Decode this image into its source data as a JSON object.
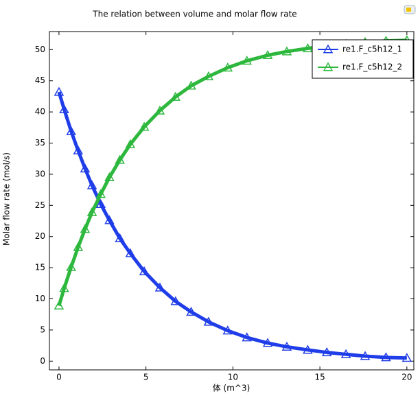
{
  "chart_data": {
    "type": "line",
    "title": "The relation between volume and molar flow rate",
    "x_label": "体 (m^3)",
    "y_label": "Molar flow rate (mol/s)",
    "x": [
      0,
      0.3,
      0.7,
      1.1,
      1.5,
      1.9,
      2.4,
      2.9,
      3.5,
      4.1,
      4.9,
      5.8,
      6.7,
      7.6,
      8.6,
      9.7,
      10.8,
      12,
      13.1,
      14.3,
      15.4,
      16.5,
      17.6,
      18.8,
      20
    ],
    "series": [
      {
        "name": "re1.F_c5h12_1",
        "color": "#1f3de8",
        "values": [
          43.2,
          40.4,
          36.9,
          33.8,
          30.9,
          28.2,
          25.2,
          22.6,
          19.7,
          17.3,
          14.4,
          11.8,
          9.6,
          7.9,
          6.3,
          4.9,
          3.8,
          2.9,
          2.3,
          1.8,
          1.4,
          1.1,
          0.8,
          0.6,
          0.5
        ]
      },
      {
        "name": "re1.F_c5h12_2",
        "color": "#2db83d",
        "values": [
          8.9,
          11.7,
          15.1,
          18.3,
          21.2,
          23.9,
          26.8,
          29.5,
          32.3,
          34.8,
          37.6,
          40.2,
          42.4,
          44.2,
          45.7,
          47.1,
          48.2,
          49.1,
          49.7,
          50.2,
          50.6,
          50.9,
          51.2,
          51.4,
          51.5
        ]
      }
    ],
    "xlim": [
      -0.55,
      20.4
    ],
    "ylim": [
      -1.4,
      52.9
    ],
    "xticks": [
      0,
      5,
      10,
      15,
      20
    ],
    "yticks": [
      0,
      5,
      10,
      15,
      20,
      25,
      30,
      35,
      40,
      45,
      50
    ],
    "legend": "upper right",
    "marker": "triangle"
  }
}
